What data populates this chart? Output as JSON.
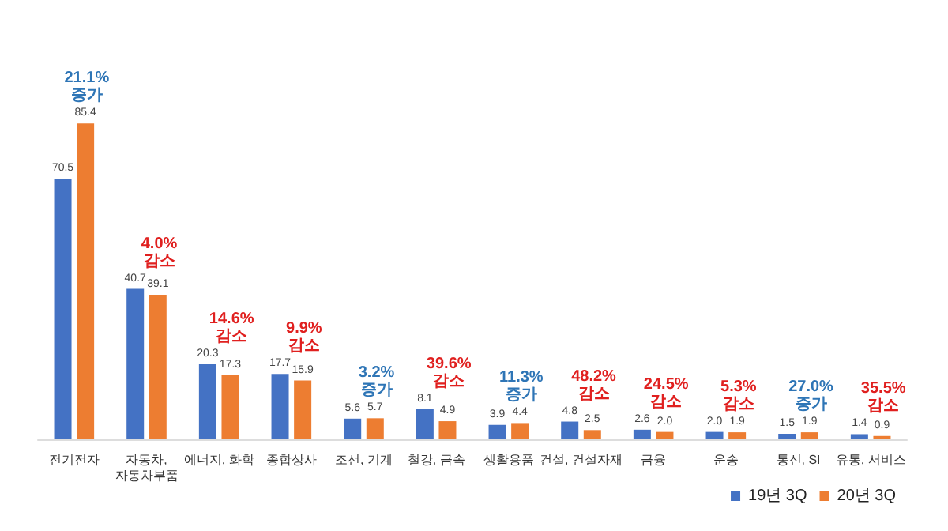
{
  "chart_data": {
    "type": "bar",
    "categories": [
      "전기전자",
      "자동차,\n자동차부품",
      "에너지, 화학",
      "종합상사",
      "조선, 기계",
      "철강, 금속",
      "생활용품",
      "건설, 건설자재",
      "금융",
      "운송",
      "통신, SI",
      "유통, 서비스"
    ],
    "series": [
      {
        "name": "19년 3Q",
        "color": "#4472c4",
        "values": [
          70.5,
          40.7,
          20.3,
          17.7,
          5.6,
          8.1,
          3.9,
          4.8,
          2.6,
          2.0,
          1.5,
          1.4
        ],
        "value_labels": [
          "70.5",
          "40.7",
          "20.3",
          "17.7",
          "5.6",
          "8.1",
          "3.9",
          "4.8",
          "2.6",
          "2.0",
          "1.5",
          "1.4"
        ]
      },
      {
        "name": "20년 3Q",
        "color": "#ed7d31",
        "values": [
          85.4,
          39.1,
          17.3,
          15.9,
          5.7,
          4.9,
          4.4,
          2.5,
          2.0,
          1.9,
          1.9,
          0.9
        ],
        "value_labels": [
          "85.4",
          "39.1",
          "17.3",
          "15.9",
          "5.7",
          "4.9",
          "4.4",
          "2.5",
          "2.0",
          "1.9",
          "1.9",
          "0.9"
        ]
      }
    ],
    "legend": "bottom right",
    "annotations": [
      {
        "text": "21.1%\n증가",
        "x": "전기전자",
        "y": 85.4
      },
      {
        "text": "4.0%\n감소",
        "x": "자동차,\n자동차부품",
        "y": 40.7
      },
      {
        "text": "14.6%\n감소",
        "x": "에너지, 화학",
        "y": 20.3
      },
      {
        "text": "9.9%\n감소",
        "x": "종합상사",
        "y": 17.7
      },
      {
        "text": "3.2%\n증가",
        "x": "조선, 기계",
        "y": 5.7
      },
      {
        "text": "39.6%\n감소",
        "x": "철강, 금속",
        "y": 8.1
      },
      {
        "text": "11.3%\n증가",
        "x": "생활용품",
        "y": 4.4
      },
      {
        "text": "48.2%\n감소",
        "x": "건설, 건설자재",
        "y": 4.8
      },
      {
        "text": "24.5%\n감소",
        "x": "금융",
        "y": 2.6
      },
      {
        "text": "5.3%\n감소",
        "x": "운송",
        "y": 2.0
      },
      {
        "text": "27.0%\n증가",
        "x": "통신, SI",
        "y": 1.9
      },
      {
        "text": "35.5%\n감소",
        "x": "유통, 서비스",
        "y": 1.4
      }
    ]
  }
}
